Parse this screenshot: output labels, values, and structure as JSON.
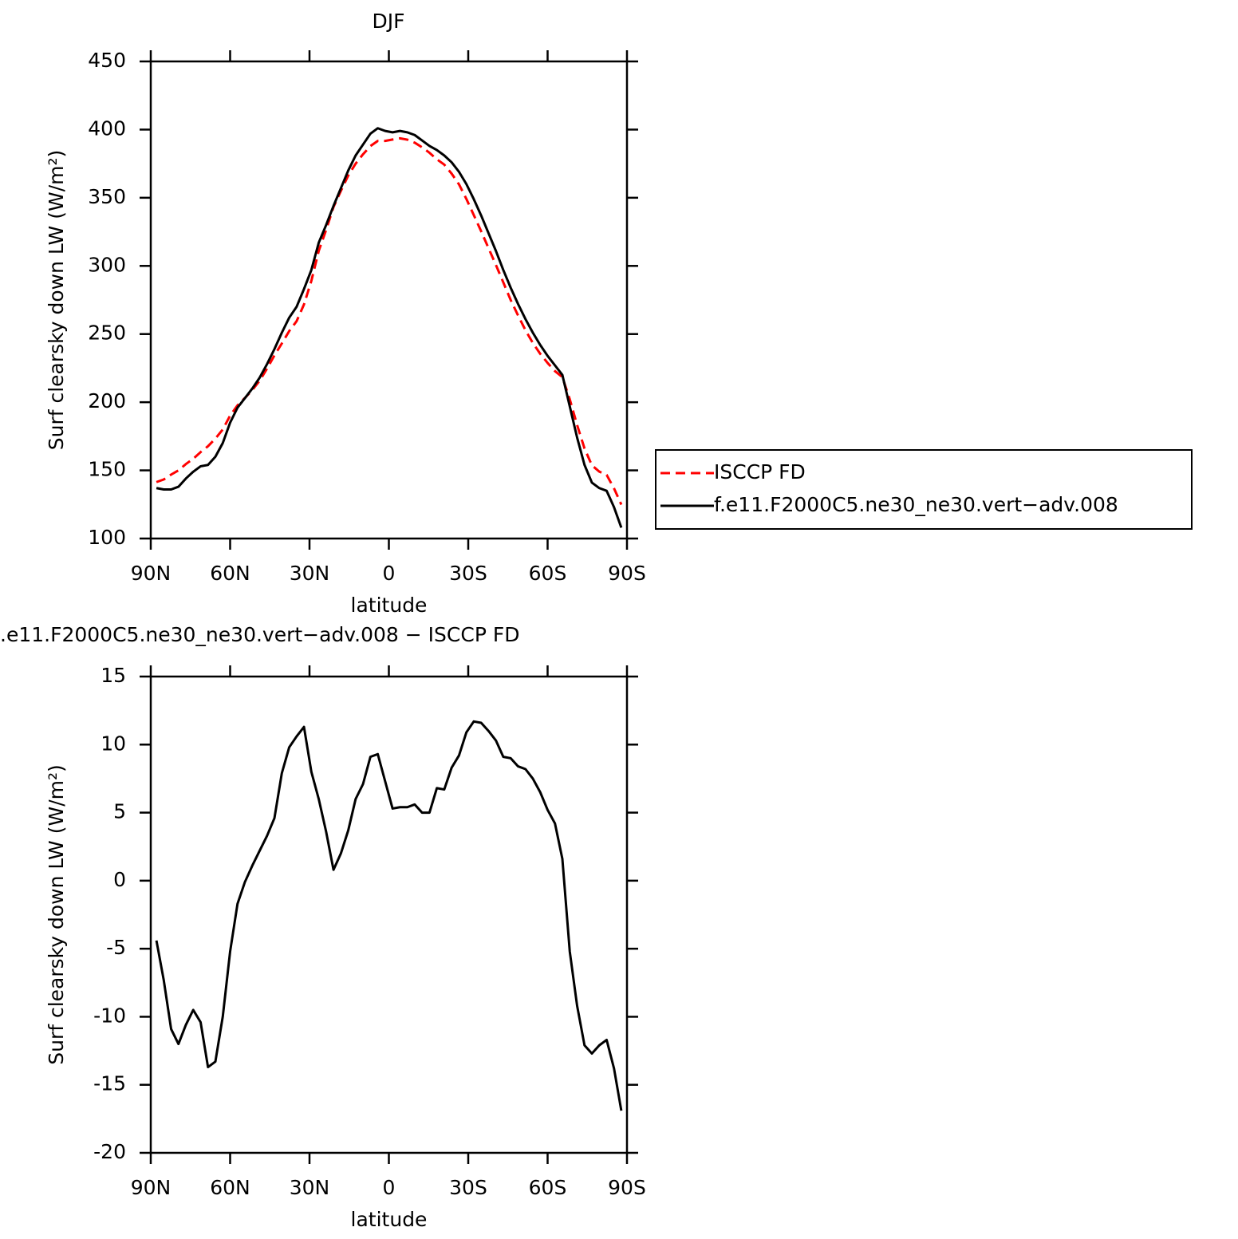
{
  "chart_data": [
    {
      "type": "line",
      "title": "DJF",
      "xlabel": "latitude",
      "ylabel": "Surf clearsky down LW (W/m²)",
      "x": [
        87.86,
        85.1,
        82.31,
        79.53,
        76.74,
        73.95,
        71.16,
        68.37,
        65.58,
        62.79,
        60.0,
        57.21,
        54.42,
        51.63,
        48.84,
        46.04,
        43.25,
        40.46,
        37.67,
        34.88,
        32.09,
        29.3,
        26.51,
        23.72,
        20.93,
        18.14,
        15.35,
        12.56,
        9.77,
        6.98,
        4.19,
        1.4,
        -1.4,
        -4.19,
        -6.98,
        -9.77,
        -12.56,
        -15.35,
        -18.14,
        -20.93,
        -23.72,
        -26.51,
        -29.3,
        -32.09,
        -34.88,
        -37.67,
        -40.46,
        -43.25,
        -46.04,
        -48.84,
        -51.63,
        -54.42,
        -57.21,
        -60.0,
        -62.79,
        -65.58,
        -68.37,
        -71.16,
        -73.95,
        -76.74,
        -79.53,
        -82.31,
        -85.1,
        -87.86
      ],
      "series": [
        {
          "name": "ISCCP FD",
          "color": "#ff0000",
          "dash": true,
          "values": [
            141.4,
            143.3,
            146.9,
            150,
            154.6,
            158.5,
            163.4,
            167.7,
            173.3,
            180,
            190.2,
            197.7,
            203.1,
            208.9,
            215.8,
            224.7,
            234.4,
            243.1,
            252.2,
            259.4,
            271.7,
            289,
            311,
            326.4,
            343.2,
            355,
            366.3,
            375,
            381.9,
            387.9,
            391.7,
            391.7,
            392.7,
            393.6,
            392.6,
            390.4,
            387,
            383,
            378.2,
            374.3,
            367.7,
            359.8,
            349.1,
            337.3,
            325.4,
            313,
            300.7,
            287.9,
            275,
            263.6,
            252.8,
            243.5,
            235.5,
            228.8,
            222.8,
            218.4,
            202.2,
            183.2,
            166.1,
            153.7,
            149.1,
            146.7,
            136.8,
            124.9
          ]
        },
        {
          "name": "f.e11.F2000C5.ne30_ne30.vert−adv.008",
          "color": "#000000",
          "dash": false,
          "values": [
            137,
            136,
            136,
            138,
            144,
            149,
            153,
            154,
            160,
            170,
            185,
            196,
            203,
            210,
            218,
            228,
            239,
            251,
            262,
            270,
            283,
            297,
            317,
            330,
            344,
            357,
            370,
            381,
            389,
            397,
            401,
            399,
            398,
            399,
            398,
            396,
            392,
            388,
            385,
            381,
            376,
            369,
            360,
            349,
            337,
            324,
            311,
            297,
            284,
            272,
            261,
            251,
            242,
            234,
            227,
            220,
            197,
            174,
            154,
            141,
            137,
            135,
            123,
            108
          ]
        }
      ],
      "xlim": [
        90,
        -90
      ],
      "ylim": [
        100,
        450
      ],
      "xticks": [
        {
          "value": 90,
          "label": "90N"
        },
        {
          "value": 60,
          "label": "60N"
        },
        {
          "value": 30,
          "label": "30N"
        },
        0,
        {
          "value": -30,
          "label": "30S"
        },
        {
          "value": -60,
          "label": "60S"
        },
        {
          "value": -90,
          "label": "90S"
        }
      ],
      "yticks": [
        100,
        150,
        200,
        250,
        300,
        350,
        400,
        450
      ]
    },
    {
      "type": "line",
      "title": ".e11.F2000C5.ne30_ne30.vert−adv.008 − ISCCP FD",
      "xlabel": "latitude",
      "ylabel": "Surf clearsky down LW (W/m²)",
      "x": [
        87.86,
        85.1,
        82.31,
        79.53,
        76.74,
        73.95,
        71.16,
        68.37,
        65.58,
        62.79,
        60.0,
        57.21,
        54.42,
        51.63,
        48.84,
        46.04,
        43.25,
        40.46,
        37.67,
        34.88,
        32.09,
        29.3,
        26.51,
        23.72,
        20.93,
        18.14,
        15.35,
        12.56,
        9.77,
        6.98,
        4.19,
        1.4,
        -1.4,
        -4.19,
        -6.98,
        -9.77,
        -12.56,
        -15.35,
        -18.14,
        -20.93,
        -23.72,
        -26.51,
        -29.3,
        -32.09,
        -34.88,
        -37.67,
        -40.46,
        -43.25,
        -46.04,
        -48.84,
        -51.63,
        -54.42,
        -57.21,
        -60.0,
        -62.79,
        -65.58,
        -68.37,
        -71.16,
        -73.95,
        -76.74,
        -79.53,
        -82.31,
        -85.1,
        -87.86
      ],
      "series": [
        {
          "color": "#000000",
          "dash": false,
          "values": [
            -4.4,
            -7.3,
            -10.9,
            -12.0,
            -10.6,
            -9.5,
            -10.4,
            -13.7,
            -13.3,
            -10.0,
            -5.2,
            -1.7,
            -0.1,
            1.1,
            2.2,
            3.3,
            4.6,
            7.9,
            9.8,
            10.6,
            11.3,
            8.0,
            6.0,
            3.6,
            0.8,
            2.0,
            3.7,
            6.0,
            7.1,
            9.1,
            9.3,
            7.3,
            5.3,
            5.4,
            5.4,
            5.6,
            5.0,
            5.0,
            6.8,
            6.7,
            8.3,
            9.2,
            10.9,
            11.7,
            11.6,
            11.0,
            10.3,
            9.1,
            9.0,
            8.4,
            8.2,
            7.5,
            6.5,
            5.2,
            4.2,
            1.6,
            -5.2,
            -9.2,
            -12.1,
            -12.7,
            -12.1,
            -11.7,
            -13.8,
            -16.9
          ]
        }
      ],
      "xlim": [
        90,
        -90
      ],
      "ylim": [
        -20,
        15
      ],
      "xticks": [
        {
          "value": 90,
          "label": "90N"
        },
        {
          "value": 60,
          "label": "60N"
        },
        {
          "value": 30,
          "label": "30N"
        },
        0,
        {
          "value": -30,
          "label": "30S"
        },
        {
          "value": -60,
          "label": "60S"
        },
        {
          "value": -90,
          "label": "90S"
        }
      ],
      "yticks": [
        -20,
        -15,
        -10,
        -5,
        0,
        5,
        10,
        15
      ]
    }
  ]
}
